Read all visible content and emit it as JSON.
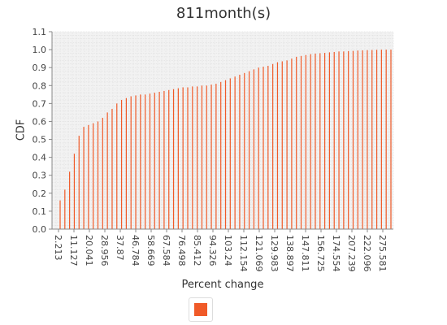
{
  "chart_data": {
    "type": "bar",
    "title": "811month(s)",
    "xlabel": "Percent change",
    "ylabel": "CDF",
    "ylim": [
      0,
      1.1
    ],
    "yticks": [
      "0.0",
      "0.1",
      "0.2",
      "0.3",
      "0.4",
      "0.5",
      "0.6",
      "0.7",
      "0.8",
      "0.9",
      "1.0",
      "1.1"
    ],
    "xtick_labels": [
      "2.213",
      "11.127",
      "20.041",
      "28.956",
      "37.87",
      "46.784",
      "58.669",
      "67.584",
      "76.498",
      "85.412",
      "94.326",
      "103.24",
      "112.154",
      "121.069",
      "129.983",
      "138.897",
      "147.811",
      "156.725",
      "174.554",
      "207.239",
      "222.096",
      "275.581"
    ],
    "grid": true,
    "legend": "bottom-center",
    "series": [
      {
        "color": "#f05a28",
        "values": [
          0.16,
          0.22,
          0.32,
          0.42,
          0.52,
          0.57,
          0.58,
          0.59,
          0.6,
          0.62,
          0.65,
          0.67,
          0.7,
          0.72,
          0.73,
          0.74,
          0.745,
          0.75,
          0.75,
          0.755,
          0.76,
          0.765,
          0.77,
          0.775,
          0.78,
          0.785,
          0.79,
          0.79,
          0.795,
          0.795,
          0.8,
          0.8,
          0.805,
          0.81,
          0.82,
          0.83,
          0.84,
          0.85,
          0.86,
          0.87,
          0.88,
          0.89,
          0.9,
          0.905,
          0.91,
          0.92,
          0.93,
          0.935,
          0.94,
          0.95,
          0.96,
          0.965,
          0.97,
          0.975,
          0.978,
          0.98,
          0.982,
          0.985,
          0.987,
          0.99,
          0.99,
          0.992,
          0.993,
          0.995,
          0.996,
          0.997,
          0.998,
          0.999,
          1.0,
          1.0,
          1.0
        ]
      }
    ]
  }
}
